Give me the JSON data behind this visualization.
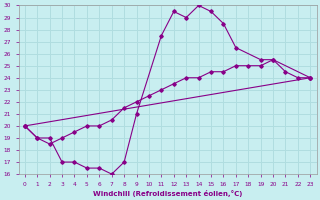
{
  "xlabel": "Windchill (Refroidissement éolien,°C)",
  "background_color": "#c8eef0",
  "grid_color": "#b0dde0",
  "line_color": "#880088",
  "xlim": [
    -0.5,
    23.5
  ],
  "ylim": [
    16,
    30
  ],
  "xticks": [
    0,
    1,
    2,
    3,
    4,
    5,
    6,
    7,
    8,
    9,
    10,
    11,
    12,
    13,
    14,
    15,
    16,
    17,
    18,
    19,
    20,
    21,
    22,
    23
  ],
  "yticks": [
    16,
    17,
    18,
    19,
    20,
    21,
    22,
    23,
    24,
    25,
    26,
    27,
    28,
    29,
    30
  ],
  "series1_x": [
    0,
    1,
    2,
    3,
    4,
    5,
    6,
    7,
    8,
    9,
    11,
    12,
    13,
    14,
    15,
    16,
    17,
    19,
    20,
    21,
    22,
    23
  ],
  "series1_y": [
    20.0,
    19.0,
    19.0,
    17.0,
    17.0,
    16.5,
    16.5,
    16.0,
    17.0,
    21.0,
    27.5,
    29.5,
    29.0,
    30.0,
    29.5,
    28.5,
    26.5,
    25.5,
    25.5,
    24.5,
    24.0,
    24.0
  ],
  "series2_x": [
    0,
    1,
    2,
    3,
    4,
    5,
    6,
    7,
    8,
    9,
    10,
    11,
    12,
    13,
    14,
    15,
    16,
    17,
    18,
    19,
    20,
    23
  ],
  "series2_y": [
    20.0,
    19.0,
    18.5,
    19.0,
    19.5,
    20.0,
    20.0,
    20.5,
    21.5,
    22.0,
    22.5,
    23.0,
    23.5,
    24.0,
    24.0,
    24.5,
    24.5,
    25.0,
    25.0,
    25.0,
    25.5,
    24.0
  ],
  "series3_x": [
    0,
    23
  ],
  "series3_y": [
    20.0,
    24.0
  ]
}
